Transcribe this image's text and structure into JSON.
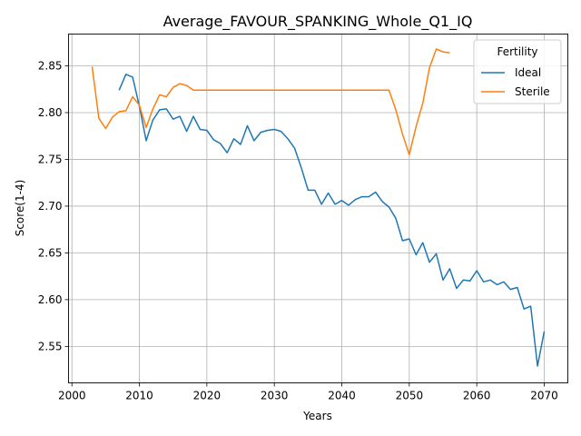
{
  "chart_data": {
    "type": "line",
    "title": "Average_FAVOUR_SPANKING_Whole_Q1_IQ",
    "xlabel": "Years",
    "ylabel": "Score(1-4)",
    "xlim": [
      1999.5,
      2073.5
    ],
    "ylim": [
      2.511,
      2.884
    ],
    "x_ticks": [
      2000,
      2010,
      2020,
      2030,
      2040,
      2050,
      2060,
      2070
    ],
    "x_tick_labels": [
      "2000",
      "2010",
      "2020",
      "2030",
      "2040",
      "2050",
      "2060",
      "2070"
    ],
    "y_ticks": [
      2.55,
      2.6,
      2.65,
      2.7,
      2.75,
      2.8,
      2.85
    ],
    "y_tick_labels": [
      "2.55",
      "2.60",
      "2.65",
      "2.70",
      "2.75",
      "2.80",
      "2.85"
    ],
    "grid": true,
    "legend": {
      "title": "Fertility",
      "position": "top-right"
    },
    "series": [
      {
        "name": "Ideal",
        "color": "#1f77b4",
        "x": [
          2007,
          2008,
          2009,
          2010,
          2011,
          2012,
          2013,
          2014,
          2015,
          2016,
          2017,
          2018,
          2019,
          2020,
          2021,
          2022,
          2023,
          2024,
          2025,
          2026,
          2027,
          2028,
          2029,
          2030,
          2031,
          2032,
          2033,
          2034,
          2035,
          2036,
          2037,
          2038,
          2039,
          2040,
          2041,
          2042,
          2043,
          2044,
          2045,
          2046,
          2047,
          2048,
          2049,
          2050,
          2051,
          2052,
          2053,
          2054,
          2055,
          2056,
          2057,
          2058,
          2059,
          2060,
          2061,
          2062,
          2063,
          2064,
          2065,
          2066,
          2067,
          2068,
          2069,
          2070
        ],
        "y": [
          2.824,
          2.841,
          2.838,
          2.807,
          2.77,
          2.792,
          2.803,
          2.804,
          2.793,
          2.796,
          2.78,
          2.796,
          2.782,
          2.781,
          2.771,
          2.767,
          2.757,
          2.772,
          2.766,
          2.786,
          2.77,
          2.779,
          2.781,
          2.782,
          2.78,
          2.772,
          2.762,
          2.741,
          2.717,
          2.717,
          2.702,
          2.714,
          2.702,
          2.706,
          2.701,
          2.707,
          2.71,
          2.71,
          2.715,
          2.705,
          2.699,
          2.687,
          2.663,
          2.665,
          2.648,
          2.661,
          2.64,
          2.649,
          2.621,
          2.633,
          2.612,
          2.621,
          2.62,
          2.631,
          2.619,
          2.621,
          2.616,
          2.619,
          2.611,
          2.613,
          2.59,
          2.593,
          2.529,
          2.566
        ]
      },
      {
        "name": "Sterile",
        "color": "#ff7f0e",
        "x": [
          2003,
          2004,
          2005,
          2006,
          2007,
          2008,
          2009,
          2010,
          2011,
          2012,
          2013,
          2014,
          2015,
          2016,
          2017,
          2018,
          2019,
          2020,
          2021,
          2022,
          2023,
          2024,
          2025,
          2026,
          2027,
          2028,
          2029,
          2030,
          2031,
          2032,
          2033,
          2034,
          2035,
          2036,
          2037,
          2038,
          2039,
          2040,
          2041,
          2042,
          2043,
          2044,
          2045,
          2046,
          2047,
          2048,
          2049,
          2050,
          2051,
          2052,
          2053,
          2054,
          2055,
          2056
        ],
        "y": [
          2.849,
          2.794,
          2.783,
          2.795,
          2.801,
          2.802,
          2.817,
          2.808,
          2.784,
          2.804,
          2.819,
          2.817,
          2.827,
          2.831,
          2.829,
          2.824,
          2.824,
          2.824,
          2.824,
          2.824,
          2.824,
          2.824,
          2.824,
          2.824,
          2.824,
          2.824,
          2.824,
          2.824,
          2.824,
          2.824,
          2.824,
          2.824,
          2.824,
          2.824,
          2.824,
          2.824,
          2.824,
          2.824,
          2.824,
          2.824,
          2.824,
          2.824,
          2.824,
          2.824,
          2.824,
          2.803,
          2.777,
          2.755,
          2.785,
          2.81,
          2.848,
          2.868,
          2.865,
          2.864
        ]
      }
    ]
  }
}
